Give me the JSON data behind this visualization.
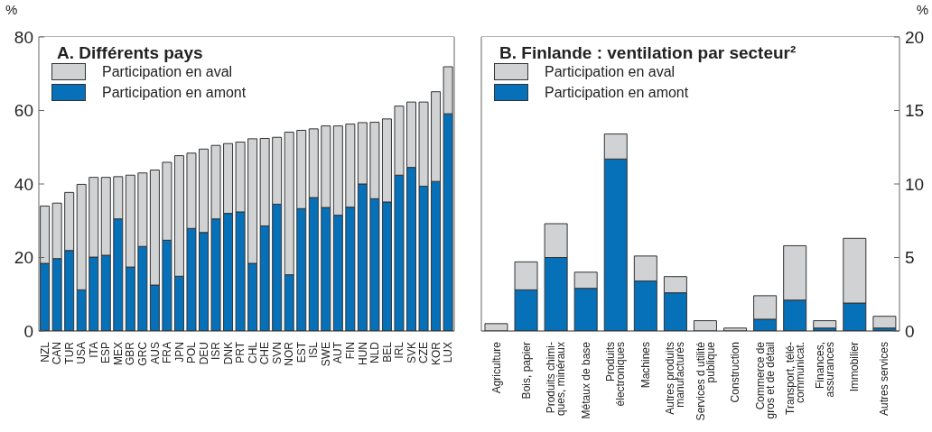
{
  "chart_data": [
    {
      "type": "bar",
      "title": "A. Différents pays",
      "ylabel": "%",
      "categories": [
        "NZL",
        "CAN",
        "TUR",
        "USA",
        "ITA",
        "ESP",
        "MEX",
        "GBR",
        "GRC",
        "AUS",
        "FRA",
        "JPN",
        "POL",
        "DEU",
        "ISR",
        "DNK",
        "PRT",
        "CHL",
        "CHE",
        "SVN",
        "NOR",
        "EST",
        "ISL",
        "SWE",
        "AUT",
        "FIN",
        "HUN",
        "NLD",
        "BEL",
        "IRL",
        "SVK",
        "CZE",
        "KOR",
        "LUX"
      ],
      "series": [
        {
          "name": "Participation en amont",
          "color": "#0670b8",
          "values": [
            18.4,
            19.7,
            21.9,
            11.2,
            20.1,
            20.6,
            30.5,
            17.4,
            23.0,
            12.5,
            24.7,
            14.9,
            27.9,
            26.8,
            30.5,
            32.0,
            32.4,
            18.4,
            28.6,
            34.5,
            15.3,
            33.3,
            36.3,
            33.6,
            31.5,
            33.7,
            40.0,
            36.0,
            35.1,
            42.4,
            44.5,
            39.4,
            40.7,
            59.1
          ]
        },
        {
          "name": "Participation en aval",
          "color": "#d1d2d4",
          "values": [
            15.6,
            15.1,
            15.8,
            28.7,
            21.7,
            21.2,
            11.5,
            25.0,
            20.0,
            31.3,
            21.2,
            32.8,
            20.5,
            22.7,
            20.0,
            19.0,
            19.0,
            33.9,
            23.8,
            18.2,
            38.8,
            21.3,
            18.7,
            22.2,
            24.3,
            22.6,
            16.7,
            20.8,
            22.6,
            18.8,
            17.8,
            22.9,
            24.4,
            12.8
          ]
        }
      ],
      "ylim": [
        0,
        80
      ],
      "yticks": [
        0,
        20,
        40,
        60,
        80
      ],
      "stacked": true,
      "legend": "top left",
      "grid": false
    },
    {
      "type": "bar",
      "title": "B. Finlande : ventilation par secteur²",
      "y2label": "%",
      "categories": [
        "Agriculture",
        "Bois, papier",
        "Produits chimi-\nques, minéraux",
        "Métaux de base",
        "Produits\nélectroniques",
        "Machines",
        "Autres produits\nmanufacturés",
        "Services d utilité\npublique",
        "Construction",
        "Commerce de\ngros et de détail",
        "Transport, télé-\ncommunicat.",
        "Finances,\nassurances",
        "Immobilier",
        "Autres services"
      ],
      "series": [
        {
          "name": "Participation en amont",
          "color": "#0670b8",
          "axis": "y2",
          "values": [
            null,
            2.8,
            5.0,
            2.9,
            11.7,
            3.4,
            2.6,
            null,
            0,
            0.8,
            2.1,
            0.2,
            1.9,
            0.2
          ]
        },
        {
          "name": "Participation en aval",
          "color": "#d1d2d4",
          "axis": "y2",
          "values": [
            0.5,
            1.9,
            2.3,
            1.1,
            1.7,
            1.7,
            1.1,
            0.7,
            0.2,
            1.6,
            3.7,
            0.5,
            4.4,
            0.8
          ]
        }
      ],
      "y2lim": [
        0,
        20
      ],
      "y2ticks": [
        0,
        5,
        10,
        15,
        20
      ],
      "stacked": true,
      "legend": "top left",
      "grid": false
    }
  ]
}
